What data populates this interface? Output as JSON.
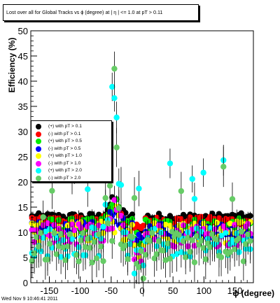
{
  "chart_data": {
    "type": "scatter",
    "title": "Lost over all for Global Tracks vs ϕ (degree) at | η | <= 1.0 at pT > 0.11",
    "xlabel": "ϕ (degree)",
    "ylabel": "Efficiency (%)",
    "xlim": [
      -180,
      180
    ],
    "ylim": [
      0,
      50
    ],
    "x_ticks": [
      -150,
      -100,
      -50,
      0,
      50,
      100,
      150
    ],
    "y_ticks": [
      0,
      5,
      10,
      15,
      20,
      25,
      30,
      35,
      40,
      45,
      50
    ],
    "legend_position": "left-middle",
    "series": [
      {
        "name": "(+) with pT > 0.1",
        "color": "#000000",
        "base": 13.0,
        "spread": 0.8,
        "dip": 2.0,
        "peak": 18.0
      },
      {
        "name": "(-) with pT > 0.1",
        "color": "#ff0000",
        "base": 12.3,
        "spread": 0.8,
        "dip": 1.5,
        "peak": 16.0
      },
      {
        "name": "(+) with pT > 0.5",
        "color": "#00ee00",
        "base": 11.2,
        "spread": 1.6,
        "dip": 2.5,
        "peak": 17.5
      },
      {
        "name": "(-) with pT > 0.5",
        "color": "#0000ff",
        "base": 10.5,
        "spread": 1.6,
        "dip": 2.5,
        "peak": 15.0
      },
      {
        "name": "(+) with pT > 1.0",
        "color": "#ffff00",
        "base": 10.0,
        "spread": 2.2,
        "dip": 3.0,
        "peak": 17.0
      },
      {
        "name": "(-) with pT > 1.0",
        "color": "#ff00ff",
        "base": 9.5,
        "spread": 2.4,
        "dip": 3.0,
        "peak": 16.0
      },
      {
        "name": "(+) with pT > 2.0",
        "color": "#00ffff",
        "base": 8.0,
        "spread": 3.0,
        "dip": 3.5,
        "peak": 35.0
      },
      {
        "name": "(-) with pT > 2.0",
        "color": "#66cc66",
        "base": 7.0,
        "spread": 3.2,
        "dip": 3.5,
        "peak": 34.0
      }
    ]
  },
  "footer": "Wed Nov  9 10:46:41 2011"
}
